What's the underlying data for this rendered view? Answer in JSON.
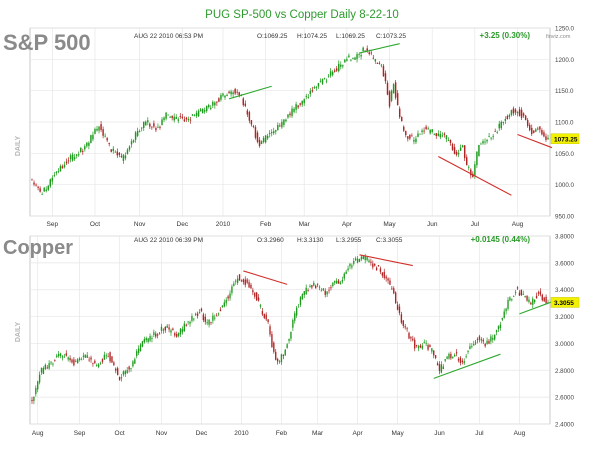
{
  "page": {
    "title": "PUG SP-500 vs Copper Daily 8-22-10",
    "watermark": "finviz.com"
  },
  "colors": {
    "title": "#2e9a2e",
    "up": "#1c9a1c",
    "down": "#b02323",
    "trend": "#d0302a",
    "trend_green": "#2ea82e",
    "grid": "#e6e6e6",
    "frame": "#bdbdbd",
    "price_tag": "#f2f200",
    "change": "#2a9a2a"
  },
  "chart_data": [
    {
      "type": "candlestick",
      "name": "S&P 500",
      "panel_label": "DAILY",
      "timestamp": "AUG 22 2010 06:53 PM",
      "ohlc": {
        "open_label": "O:1069.25",
        "high_label": "H:1074.25",
        "low_label": "L:1069.25",
        "close_label": "C:1073.25"
      },
      "change": "+3.25 (0.30%)",
      "last_price": "1073.25",
      "last_value": 1073.25,
      "ylim": [
        950,
        1250
      ],
      "yticks": [
        950,
        1000,
        1050,
        1100,
        1150,
        1200,
        1250
      ],
      "ytick_labels": [
        "950.00",
        "1000.0",
        "1050.0",
        "1100.0",
        "1150.0",
        "1200.0",
        "1250.0"
      ],
      "x_months": [
        {
          "label": "Sep",
          "day": 10
        },
        {
          "label": "Oct",
          "day": 31
        },
        {
          "label": "Nov",
          "day": 53
        },
        {
          "label": "Dec",
          "day": 74
        },
        {
          "label": "2010",
          "day": 94
        },
        {
          "label": "Feb",
          "day": 115
        },
        {
          "label": "Mar",
          "day": 134
        },
        {
          "label": "Apr",
          "day": 155
        },
        {
          "label": "May",
          "day": 176
        },
        {
          "label": "Jun",
          "day": 197
        },
        {
          "label": "Jul",
          "day": 218
        },
        {
          "label": "Aug",
          "day": 239
        }
      ],
      "n_days": 255,
      "anchors": [
        [
          0,
          1005
        ],
        [
          5,
          985
        ],
        [
          12,
          1020
        ],
        [
          20,
          1045
        ],
        [
          26,
          1060
        ],
        [
          33,
          1095
        ],
        [
          38,
          1060
        ],
        [
          44,
          1040
        ],
        [
          50,
          1075
        ],
        [
          56,
          1100
        ],
        [
          62,
          1090
        ],
        [
          66,
          1110
        ],
        [
          71,
          1105
        ],
        [
          77,
          1105
        ],
        [
          82,
          1115
        ],
        [
          88,
          1125
        ],
        [
          93,
          1140
        ],
        [
          96,
          1145
        ],
        [
          100,
          1150
        ],
        [
          103,
          1140
        ],
        [
          108,
          1095
        ],
        [
          112,
          1065
        ],
        [
          115,
          1075
        ],
        [
          120,
          1090
        ],
        [
          125,
          1105
        ],
        [
          130,
          1125
        ],
        [
          135,
          1140
        ],
        [
          140,
          1160
        ],
        [
          145,
          1170
        ],
        [
          150,
          1185
        ],
        [
          155,
          1200
        ],
        [
          160,
          1205
        ],
        [
          163,
          1215
        ],
        [
          166,
          1212
        ],
        [
          169,
          1195
        ],
        [
          172,
          1190
        ],
        [
          174,
          1160
        ],
        [
          176,
          1130
        ],
        [
          178,
          1160
        ],
        [
          181,
          1105
        ],
        [
          184,
          1080
        ],
        [
          188,
          1070
        ],
        [
          192,
          1090
        ],
        [
          196,
          1085
        ],
        [
          200,
          1080
        ],
        [
          204,
          1075
        ],
        [
          208,
          1050
        ],
        [
          212,
          1060
        ],
        [
          214,
          1030
        ],
        [
          217,
          1015
        ],
        [
          220,
          1065
        ],
        [
          224,
          1075
        ],
        [
          228,
          1085
        ],
        [
          232,
          1100
        ],
        [
          236,
          1120
        ],
        [
          240,
          1115
        ],
        [
          243,
          1105
        ],
        [
          246,
          1085
        ],
        [
          249,
          1090
        ],
        [
          252,
          1075
        ],
        [
          254,
          1073
        ]
      ],
      "trendlines": [
        {
          "from": [
            97,
            1137
          ],
          "to": [
            118,
            1157
          ],
          "color": "trend_green"
        },
        {
          "from": [
            161,
            1210
          ],
          "to": [
            181,
            1225
          ],
          "color": "trend_green"
        },
        {
          "from": [
            200,
            1045
          ],
          "to": [
            236,
            983
          ],
          "color": "trend"
        },
        {
          "from": [
            239,
            1080
          ],
          "to": [
            262,
            1059
          ],
          "color": "trend"
        }
      ]
    },
    {
      "type": "candlestick",
      "name": "Copper",
      "panel_label": "DAILY",
      "timestamp": "AUG 22 2010 06:39 PM",
      "ohlc": {
        "open_label": "O:3.2960",
        "high_label": "H:3.3130",
        "low_label": "L:3.2955",
        "close_label": "C:3.3055"
      },
      "change": "+0.0145 (0.44%)",
      "last_price": "3.3055",
      "last_value": 3.3055,
      "ylim": [
        2.4,
        3.8
      ],
      "yticks": [
        2.4,
        2.6,
        2.8,
        3.0,
        3.2,
        3.4,
        3.6,
        3.8
      ],
      "ytick_labels": [
        "2.4000",
        "2.6000",
        "2.8000",
        "3.0000",
        "3.2000",
        "3.4000",
        "3.6000",
        "3.8000"
      ],
      "x_months": [
        {
          "label": "Aug",
          "day": 3
        },
        {
          "label": "Sep",
          "day": 25
        },
        {
          "label": "Oct",
          "day": 46
        },
        {
          "label": "Nov",
          "day": 68
        },
        {
          "label": "Dec",
          "day": 89
        },
        {
          "label": "2010",
          "day": 110
        },
        {
          "label": "Feb",
          "day": 131
        },
        {
          "label": "Mar",
          "day": 150
        },
        {
          "label": "Apr",
          "day": 171
        },
        {
          "label": "May",
          "day": 192
        },
        {
          "label": "Jun",
          "day": 214
        },
        {
          "label": "Jul",
          "day": 235
        },
        {
          "label": "Aug",
          "day": 256
        }
      ],
      "n_days": 272,
      "anchors": [
        [
          0,
          2.56
        ],
        [
          4,
          2.78
        ],
        [
          10,
          2.86
        ],
        [
          16,
          2.92
        ],
        [
          22,
          2.86
        ],
        [
          28,
          2.9
        ],
        [
          34,
          2.84
        ],
        [
          40,
          2.92
        ],
        [
          46,
          2.74
        ],
        [
          52,
          2.84
        ],
        [
          58,
          3.0
        ],
        [
          64,
          3.06
        ],
        [
          70,
          3.12
        ],
        [
          76,
          3.06
        ],
        [
          82,
          3.16
        ],
        [
          88,
          3.24
        ],
        [
          92,
          3.14
        ],
        [
          96,
          3.2
        ],
        [
          100,
          3.28
        ],
        [
          104,
          3.38
        ],
        [
          108,
          3.5
        ],
        [
          112,
          3.46
        ],
        [
          116,
          3.4
        ],
        [
          120,
          3.26
        ],
        [
          124,
          3.14
        ],
        [
          127,
          2.92
        ],
        [
          130,
          2.86
        ],
        [
          134,
          3.0
        ],
        [
          138,
          3.22
        ],
        [
          142,
          3.36
        ],
        [
          146,
          3.44
        ],
        [
          150,
          3.42
        ],
        [
          154,
          3.38
        ],
        [
          158,
          3.44
        ],
        [
          162,
          3.46
        ],
        [
          166,
          3.56
        ],
        [
          170,
          3.62
        ],
        [
          174,
          3.64
        ],
        [
          178,
          3.6
        ],
        [
          182,
          3.56
        ],
        [
          186,
          3.48
        ],
        [
          190,
          3.36
        ],
        [
          194,
          3.16
        ],
        [
          198,
          3.06
        ],
        [
          202,
          2.96
        ],
        [
          206,
          3.0
        ],
        [
          210,
          2.94
        ],
        [
          214,
          2.8
        ],
        [
          218,
          2.9
        ],
        [
          222,
          2.92
        ],
        [
          226,
          2.86
        ],
        [
          230,
          2.98
        ],
        [
          234,
          3.04
        ],
        [
          238,
          3.0
        ],
        [
          242,
          3.04
        ],
        [
          246,
          3.16
        ],
        [
          250,
          3.3
        ],
        [
          254,
          3.4
        ],
        [
          258,
          3.36
        ],
        [
          262,
          3.3
        ],
        [
          266,
          3.38
        ],
        [
          270,
          3.31
        ]
      ],
      "trendlines": [
        {
          "from": [
            111,
            3.54
          ],
          "to": [
            134,
            3.44
          ],
          "color": "trend"
        },
        {
          "from": [
            172,
            3.66
          ],
          "to": [
            200,
            3.58
          ],
          "color": "trend"
        },
        {
          "from": [
            211,
            2.74
          ],
          "to": [
            246,
            2.92
          ],
          "color": "trend_green"
        },
        {
          "from": [
            256,
            3.22
          ],
          "to": [
            281,
            3.31
          ],
          "color": "trend_green"
        }
      ]
    }
  ]
}
